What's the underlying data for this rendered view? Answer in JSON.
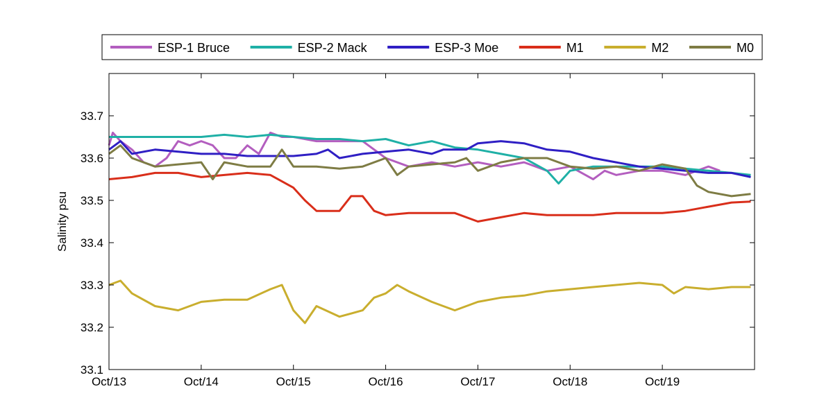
{
  "chart_data": {
    "type": "line",
    "xlabel": "",
    "ylabel": "Salinity psu",
    "xlim": [
      "2000-10-13",
      "2000-10-20"
    ],
    "ylim": [
      33.1,
      33.8
    ],
    "x_ticks": [
      "Oct/13",
      "Oct/14",
      "Oct/15",
      "Oct/16",
      "Oct/17",
      "Oct/18",
      "Oct/19"
    ],
    "y_ticks": [
      "33.1",
      "33.2",
      "33.3",
      "33.4",
      "33.5",
      "33.6",
      "33.7"
    ],
    "grid": false,
    "legend_position": "top, horizontal above plot",
    "series": [
      {
        "name": "ESP-1 Bruce",
        "color": "#b35ebf",
        "points": [
          [
            "2000-10-13T00:00",
            33.63
          ],
          [
            "2000-10-13T01:00",
            33.66
          ],
          [
            "2000-10-13T03:00",
            33.64
          ],
          [
            "2000-10-13T06:00",
            33.62
          ],
          [
            "2000-10-13T09:00",
            33.59
          ],
          [
            "2000-10-13T12:00",
            33.58
          ],
          [
            "2000-10-13T15:00",
            33.6
          ],
          [
            "2000-10-13T18:00",
            33.64
          ],
          [
            "2000-10-13T21:00",
            33.63
          ],
          [
            "2000-10-14T00:00",
            33.64
          ],
          [
            "2000-10-14T03:00",
            33.63
          ],
          [
            "2000-10-14T06:00",
            33.6
          ],
          [
            "2000-10-14T09:00",
            33.6
          ],
          [
            "2000-10-14T12:00",
            33.63
          ],
          [
            "2000-10-14T15:00",
            33.61
          ],
          [
            "2000-10-14T18:00",
            33.66
          ],
          [
            "2000-10-14T21:00",
            33.65
          ],
          [
            "2000-10-15T00:00",
            33.65
          ],
          [
            "2000-10-15T06:00",
            33.64
          ],
          [
            "2000-10-15T12:00",
            33.64
          ],
          [
            "2000-10-15T18:00",
            33.64
          ],
          [
            "2000-10-16T00:00",
            33.6
          ],
          [
            "2000-10-16T06:00",
            33.58
          ],
          [
            "2000-10-16T12:00",
            33.59
          ],
          [
            "2000-10-16T18:00",
            33.58
          ],
          [
            "2000-10-17T00:00",
            33.59
          ],
          [
            "2000-10-17T06:00",
            33.58
          ],
          [
            "2000-10-17T12:00",
            33.59
          ],
          [
            "2000-10-17T18:00",
            33.57
          ],
          [
            "2000-10-18T00:00",
            33.58
          ],
          [
            "2000-10-18T06:00",
            33.55
          ],
          [
            "2000-10-18T09:00",
            33.57
          ],
          [
            "2000-10-18T12:00",
            33.56
          ],
          [
            "2000-10-18T18:00",
            33.57
          ],
          [
            "2000-10-19T00:00",
            33.57
          ],
          [
            "2000-10-19T06:00",
            33.56
          ],
          [
            "2000-10-19T12:00",
            33.58
          ],
          [
            "2000-10-19T15:00",
            33.57
          ]
        ]
      },
      {
        "name": "ESP-2 Mack",
        "color": "#1fb0a6",
        "points": [
          [
            "2000-10-13T00:00",
            33.65
          ],
          [
            "2000-10-13T06:00",
            33.65
          ],
          [
            "2000-10-13T12:00",
            33.65
          ],
          [
            "2000-10-13T18:00",
            33.65
          ],
          [
            "2000-10-14T00:00",
            33.65
          ],
          [
            "2000-10-14T06:00",
            33.655
          ],
          [
            "2000-10-14T12:00",
            33.65
          ],
          [
            "2000-10-14T18:00",
            33.655
          ],
          [
            "2000-10-15T00:00",
            33.65
          ],
          [
            "2000-10-15T06:00",
            33.645
          ],
          [
            "2000-10-15T12:00",
            33.645
          ],
          [
            "2000-10-15T18:00",
            33.64
          ],
          [
            "2000-10-16T00:00",
            33.645
          ],
          [
            "2000-10-16T06:00",
            33.63
          ],
          [
            "2000-10-16T12:00",
            33.64
          ],
          [
            "2000-10-16T18:00",
            33.625
          ],
          [
            "2000-10-17T00:00",
            33.62
          ],
          [
            "2000-10-17T06:00",
            33.61
          ],
          [
            "2000-10-17T12:00",
            33.6
          ],
          [
            "2000-10-17T18:00",
            33.57
          ],
          [
            "2000-10-17T21:00",
            33.54
          ],
          [
            "2000-10-18T00:00",
            33.57
          ],
          [
            "2000-10-18T06:00",
            33.58
          ],
          [
            "2000-10-18T12:00",
            33.58
          ],
          [
            "2000-10-18T18:00",
            33.58
          ],
          [
            "2000-10-19T00:00",
            33.58
          ],
          [
            "2000-10-19T06:00",
            33.575
          ],
          [
            "2000-10-19T12:00",
            33.57
          ],
          [
            "2000-10-19T18:00",
            33.565
          ],
          [
            "2000-10-19T23:00",
            33.56
          ]
        ]
      },
      {
        "name": "ESP-3 Moe",
        "color": "#2f1fc4",
        "points": [
          [
            "2000-10-13T00:00",
            33.62
          ],
          [
            "2000-10-13T03:00",
            33.64
          ],
          [
            "2000-10-13T06:00",
            33.61
          ],
          [
            "2000-10-13T12:00",
            33.62
          ],
          [
            "2000-10-13T18:00",
            33.615
          ],
          [
            "2000-10-14T00:00",
            33.61
          ],
          [
            "2000-10-14T06:00",
            33.61
          ],
          [
            "2000-10-14T12:00",
            33.605
          ],
          [
            "2000-10-14T18:00",
            33.605
          ],
          [
            "2000-10-15T00:00",
            33.605
          ],
          [
            "2000-10-15T06:00",
            33.61
          ],
          [
            "2000-10-15T09:00",
            33.62
          ],
          [
            "2000-10-15T12:00",
            33.6
          ],
          [
            "2000-10-15T18:00",
            33.61
          ],
          [
            "2000-10-16T00:00",
            33.615
          ],
          [
            "2000-10-16T06:00",
            33.62
          ],
          [
            "2000-10-16T12:00",
            33.61
          ],
          [
            "2000-10-16T15:00",
            33.62
          ],
          [
            "2000-10-16T21:00",
            33.62
          ],
          [
            "2000-10-17T00:00",
            33.635
          ],
          [
            "2000-10-17T06:00",
            33.64
          ],
          [
            "2000-10-17T12:00",
            33.635
          ],
          [
            "2000-10-17T18:00",
            33.62
          ],
          [
            "2000-10-18T00:00",
            33.615
          ],
          [
            "2000-10-18T06:00",
            33.6
          ],
          [
            "2000-10-18T12:00",
            33.59
          ],
          [
            "2000-10-18T18:00",
            33.58
          ],
          [
            "2000-10-19T00:00",
            33.575
          ],
          [
            "2000-10-19T06:00",
            33.57
          ],
          [
            "2000-10-19T12:00",
            33.565
          ],
          [
            "2000-10-19T18:00",
            33.565
          ],
          [
            "2000-10-19T23:00",
            33.555
          ]
        ]
      },
      {
        "name": "M1",
        "color": "#d92e1a",
        "points": [
          [
            "2000-10-13T00:00",
            33.55
          ],
          [
            "2000-10-13T06:00",
            33.555
          ],
          [
            "2000-10-13T12:00",
            33.565
          ],
          [
            "2000-10-13T18:00",
            33.565
          ],
          [
            "2000-10-14T00:00",
            33.555
          ],
          [
            "2000-10-14T06:00",
            33.56
          ],
          [
            "2000-10-14T12:00",
            33.565
          ],
          [
            "2000-10-14T18:00",
            33.56
          ],
          [
            "2000-10-15T00:00",
            33.53
          ],
          [
            "2000-10-15T03:00",
            33.5
          ],
          [
            "2000-10-15T06:00",
            33.475
          ],
          [
            "2000-10-15T12:00",
            33.475
          ],
          [
            "2000-10-15T15:00",
            33.51
          ],
          [
            "2000-10-15T18:00",
            33.51
          ],
          [
            "2000-10-15T21:00",
            33.475
          ],
          [
            "2000-10-16T00:00",
            33.465
          ],
          [
            "2000-10-16T06:00",
            33.47
          ],
          [
            "2000-10-16T12:00",
            33.47
          ],
          [
            "2000-10-16T18:00",
            33.47
          ],
          [
            "2000-10-17T00:00",
            33.45
          ],
          [
            "2000-10-17T06:00",
            33.46
          ],
          [
            "2000-10-17T12:00",
            33.47
          ],
          [
            "2000-10-17T18:00",
            33.465
          ],
          [
            "2000-10-18T00:00",
            33.465
          ],
          [
            "2000-10-18T06:00",
            33.465
          ],
          [
            "2000-10-18T12:00",
            33.47
          ],
          [
            "2000-10-18T18:00",
            33.47
          ],
          [
            "2000-10-19T00:00",
            33.47
          ],
          [
            "2000-10-19T06:00",
            33.475
          ],
          [
            "2000-10-19T12:00",
            33.485
          ],
          [
            "2000-10-19T18:00",
            33.495
          ],
          [
            "2000-10-19T23:00",
            33.497
          ]
        ]
      },
      {
        "name": "M2",
        "color": "#c9ae2e",
        "points": [
          [
            "2000-10-13T00:00",
            33.3
          ],
          [
            "2000-10-13T03:00",
            33.31
          ],
          [
            "2000-10-13T06:00",
            33.28
          ],
          [
            "2000-10-13T12:00",
            33.25
          ],
          [
            "2000-10-13T18:00",
            33.24
          ],
          [
            "2000-10-14T00:00",
            33.26
          ],
          [
            "2000-10-14T06:00",
            33.265
          ],
          [
            "2000-10-14T12:00",
            33.265
          ],
          [
            "2000-10-14T18:00",
            33.29
          ],
          [
            "2000-10-14T21:00",
            33.3
          ],
          [
            "2000-10-15T00:00",
            33.24
          ],
          [
            "2000-10-15T03:00",
            33.21
          ],
          [
            "2000-10-15T06:00",
            33.25
          ],
          [
            "2000-10-15T12:00",
            33.225
          ],
          [
            "2000-10-15T18:00",
            33.24
          ],
          [
            "2000-10-15T21:00",
            33.27
          ],
          [
            "2000-10-16T00:00",
            33.28
          ],
          [
            "2000-10-16T03:00",
            33.3
          ],
          [
            "2000-10-16T06:00",
            33.285
          ],
          [
            "2000-10-16T12:00",
            33.26
          ],
          [
            "2000-10-16T18:00",
            33.24
          ],
          [
            "2000-10-17T00:00",
            33.26
          ],
          [
            "2000-10-17T06:00",
            33.27
          ],
          [
            "2000-10-17T12:00",
            33.275
          ],
          [
            "2000-10-17T18:00",
            33.285
          ],
          [
            "2000-10-18T00:00",
            33.29
          ],
          [
            "2000-10-18T06:00",
            33.295
          ],
          [
            "2000-10-18T12:00",
            33.3
          ],
          [
            "2000-10-18T18:00",
            33.305
          ],
          [
            "2000-10-19T00:00",
            33.3
          ],
          [
            "2000-10-19T03:00",
            33.28
          ],
          [
            "2000-10-19T06:00",
            33.295
          ],
          [
            "2000-10-19T12:00",
            33.29
          ],
          [
            "2000-10-19T18:00",
            33.295
          ],
          [
            "2000-10-19T23:00",
            33.295
          ]
        ]
      },
      {
        "name": "M0",
        "color": "#7e7c44",
        "points": [
          [
            "2000-10-13T00:00",
            33.61
          ],
          [
            "2000-10-13T03:00",
            33.63
          ],
          [
            "2000-10-13T06:00",
            33.6
          ],
          [
            "2000-10-13T12:00",
            33.58
          ],
          [
            "2000-10-13T18:00",
            33.585
          ],
          [
            "2000-10-14T00:00",
            33.59
          ],
          [
            "2000-10-14T03:00",
            33.55
          ],
          [
            "2000-10-14T06:00",
            33.59
          ],
          [
            "2000-10-14T12:00",
            33.58
          ],
          [
            "2000-10-14T18:00",
            33.58
          ],
          [
            "2000-10-14T21:00",
            33.62
          ],
          [
            "2000-10-15T00:00",
            33.58
          ],
          [
            "2000-10-15T06:00",
            33.58
          ],
          [
            "2000-10-15T12:00",
            33.575
          ],
          [
            "2000-10-15T18:00",
            33.58
          ],
          [
            "2000-10-16T00:00",
            33.6
          ],
          [
            "2000-10-16T03:00",
            33.56
          ],
          [
            "2000-10-16T06:00",
            33.58
          ],
          [
            "2000-10-16T12:00",
            33.585
          ],
          [
            "2000-10-16T18:00",
            33.59
          ],
          [
            "2000-10-16T21:00",
            33.6
          ],
          [
            "2000-10-17T00:00",
            33.57
          ],
          [
            "2000-10-17T06:00",
            33.59
          ],
          [
            "2000-10-17T12:00",
            33.6
          ],
          [
            "2000-10-17T18:00",
            33.6
          ],
          [
            "2000-10-18T00:00",
            33.58
          ],
          [
            "2000-10-18T06:00",
            33.575
          ],
          [
            "2000-10-18T12:00",
            33.58
          ],
          [
            "2000-10-18T18:00",
            33.57
          ],
          [
            "2000-10-19T00:00",
            33.585
          ],
          [
            "2000-10-19T06:00",
            33.575
          ],
          [
            "2000-10-19T09:00",
            33.535
          ],
          [
            "2000-10-19T12:00",
            33.52
          ],
          [
            "2000-10-19T18:00",
            33.51
          ],
          [
            "2000-10-19T23:00",
            33.515
          ]
        ]
      }
    ]
  }
}
